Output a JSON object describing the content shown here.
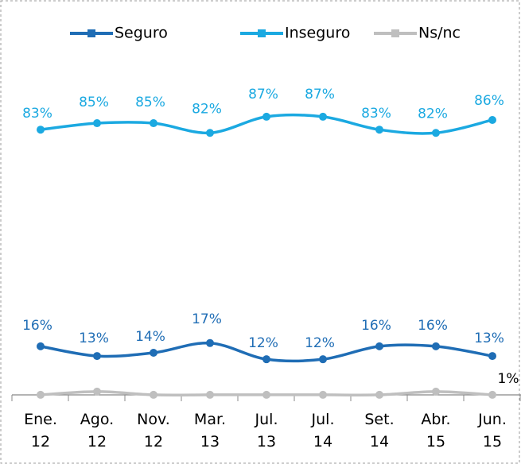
{
  "chart_data": {
    "type": "line",
    "categories": [
      "Ene. 12",
      "Ago. 12",
      "Nov. 12",
      "Mar. 13",
      "Jul. 13",
      "Jul. 14",
      "Set. 14",
      "Abr. 15",
      "Jun. 15"
    ],
    "series": [
      {
        "name": "Seguro",
        "color": "#1f6db5",
        "values": [
          16,
          13,
          14,
          17,
          12,
          12,
          16,
          16,
          13
        ],
        "value_labels": [
          "16%",
          "13%",
          "14%",
          "17%",
          "12%",
          "12%",
          "16%",
          "16%",
          "13%"
        ]
      },
      {
        "name": "Inseguro",
        "color": "#1ba9e1",
        "values": [
          83,
          85,
          85,
          82,
          87,
          87,
          83,
          82,
          86
        ],
        "value_labels": [
          "83%",
          "85%",
          "85%",
          "82%",
          "87%",
          "87%",
          "83%",
          "82%",
          "86%"
        ]
      },
      {
        "name": "Ns/nc",
        "color": "#bfbfbf",
        "values": [
          1,
          2,
          1,
          1,
          1,
          1,
          1,
          2,
          1
        ],
        "value_labels": [
          null,
          null,
          null,
          null,
          null,
          null,
          null,
          null,
          "1%"
        ]
      }
    ]
  }
}
